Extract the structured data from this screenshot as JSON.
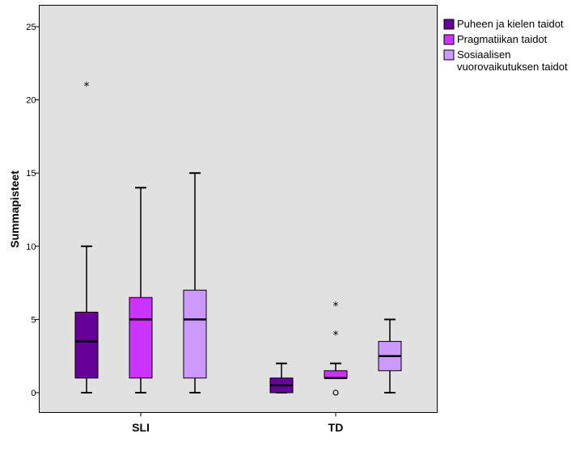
{
  "chart_data": {
    "type": "boxplot",
    "ylabel": "Summapisteet",
    "xlabel": "",
    "ylim": [
      -1.3,
      26.5
    ],
    "yticks": [
      0,
      5,
      10,
      15,
      20,
      25
    ],
    "categories": [
      "SLI",
      "TD"
    ],
    "legend_position": "right",
    "grid": false,
    "series": [
      {
        "name": "Puheen ja kielen taidot",
        "color": "#660099",
        "boxes": [
          {
            "category": "SLI",
            "min": 0,
            "q1": 1,
            "median": 3.5,
            "q3": 5.5,
            "max": 10,
            "outliers": [],
            "extremes": [
              21
            ]
          },
          {
            "category": "TD",
            "min": 0,
            "q1": 0,
            "median": 0.5,
            "q3": 1,
            "max": 2,
            "outliers": [],
            "extremes": []
          }
        ]
      },
      {
        "name": "Pragmatiikan taidot",
        "color": "#cc33ff",
        "boxes": [
          {
            "category": "SLI",
            "min": 0,
            "q1": 1,
            "median": 5,
            "q3": 6.5,
            "max": 14,
            "outliers": [],
            "extremes": []
          },
          {
            "category": "TD",
            "min": 1,
            "q1": 1,
            "median": 1,
            "q3": 1.5,
            "max": 2,
            "outliers": [
              0
            ],
            "extremes": [
              4,
              6
            ]
          }
        ]
      },
      {
        "name": "Sosiaalisen vuorovaikutuksen taidot",
        "legend_lines": [
          "Sosiaalisen",
          "vuorovaikutuksen taidot"
        ],
        "color": "#cc99ff",
        "boxes": [
          {
            "category": "SLI",
            "min": 0,
            "q1": 1,
            "median": 5,
            "q3": 7,
            "max": 15,
            "outliers": [],
            "extremes": []
          },
          {
            "category": "TD",
            "min": 0,
            "q1": 1.5,
            "median": 2.5,
            "q3": 3.5,
            "max": 5,
            "outliers": [],
            "extremes": []
          }
        ]
      }
    ]
  },
  "colors": {
    "plot_background": "#e1e1e1",
    "frame": "#000000"
  }
}
